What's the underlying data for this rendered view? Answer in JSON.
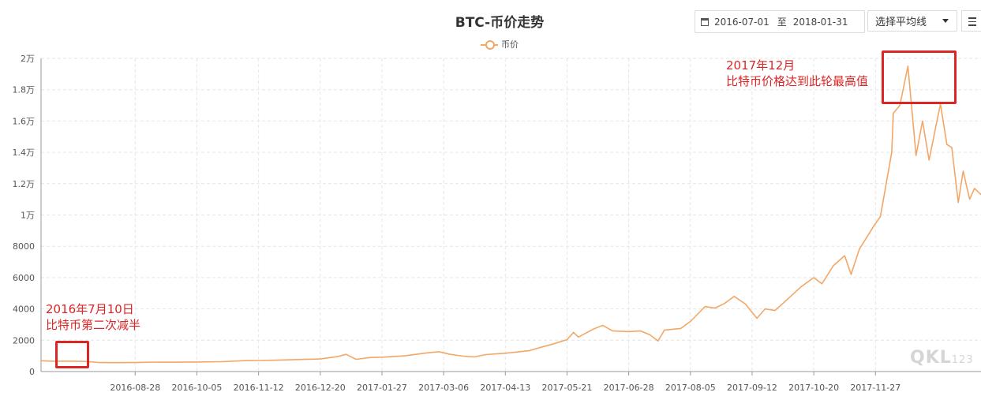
{
  "chart_data": {
    "type": "line",
    "title": "BTC-币价走势",
    "legend": {
      "position": "top-center",
      "entries": [
        "币价"
      ]
    },
    "series": [
      {
        "name": "币价",
        "color": "#f2a766",
        "points": [
          [
            "2016-07-01",
            690
          ],
          [
            "2016-07-09",
            660
          ],
          [
            "2016-07-16",
            665
          ],
          [
            "2016-07-24",
            660
          ],
          [
            "2016-07-31",
            630
          ],
          [
            "2016-08-05",
            580
          ],
          [
            "2016-08-14",
            570
          ],
          [
            "2016-08-28",
            575
          ],
          [
            "2016-09-10",
            605
          ],
          [
            "2016-09-25",
            600
          ],
          [
            "2016-10-05",
            612
          ],
          [
            "2016-10-20",
            630
          ],
          [
            "2016-11-05",
            700
          ],
          [
            "2016-11-12",
            705
          ],
          [
            "2016-11-25",
            735
          ],
          [
            "2016-12-08",
            770
          ],
          [
            "2016-12-20",
            800
          ],
          [
            "2016-12-31",
            960
          ],
          [
            "2017-01-05",
            1100
          ],
          [
            "2017-01-11",
            780
          ],
          [
            "2017-01-20",
            895
          ],
          [
            "2017-01-27",
            915
          ],
          [
            "2017-02-10",
            1000
          ],
          [
            "2017-02-23",
            1180
          ],
          [
            "2017-03-03",
            1270
          ],
          [
            "2017-03-10",
            1100
          ],
          [
            "2017-03-18",
            980
          ],
          [
            "2017-03-25",
            935
          ],
          [
            "2017-04-01",
            1085
          ],
          [
            "2017-04-13",
            1170
          ],
          [
            "2017-04-28",
            1340
          ],
          [
            "2017-05-05",
            1550
          ],
          [
            "2017-05-12",
            1750
          ],
          [
            "2017-05-21",
            2040
          ],
          [
            "2017-05-25",
            2500
          ],
          [
            "2017-05-28",
            2200
          ],
          [
            "2017-06-06",
            2700
          ],
          [
            "2017-06-12",
            2950
          ],
          [
            "2017-06-18",
            2600
          ],
          [
            "2017-06-28",
            2550
          ],
          [
            "2017-07-05",
            2600
          ],
          [
            "2017-07-11",
            2350
          ],
          [
            "2017-07-16",
            1950
          ],
          [
            "2017-07-20",
            2650
          ],
          [
            "2017-07-30",
            2750
          ],
          [
            "2017-08-05",
            3200
          ],
          [
            "2017-08-14",
            4150
          ],
          [
            "2017-08-20",
            4050
          ],
          [
            "2017-08-26",
            4350
          ],
          [
            "2017-09-01",
            4800
          ],
          [
            "2017-09-08",
            4300
          ],
          [
            "2017-09-15",
            3400
          ],
          [
            "2017-09-20",
            4000
          ],
          [
            "2017-09-26",
            3900
          ],
          [
            "2017-10-01",
            4350
          ],
          [
            "2017-10-12",
            5400
          ],
          [
            "2017-10-20",
            6000
          ],
          [
            "2017-10-25",
            5600
          ],
          [
            "2017-11-01",
            6750
          ],
          [
            "2017-11-08",
            7400
          ],
          [
            "2017-11-12",
            6200
          ],
          [
            "2017-11-17",
            7800
          ],
          [
            "2017-11-26",
            9300
          ],
          [
            "2017-11-30",
            9900
          ],
          [
            "2017-12-07",
            14000
          ],
          [
            "2017-12-08",
            16500
          ],
          [
            "2017-12-12",
            17000
          ],
          [
            "2017-12-17",
            19500
          ],
          [
            "2017-12-22",
            13800
          ],
          [
            "2017-12-26",
            16000
          ],
          [
            "2017-12-30",
            13500
          ],
          [
            "2018-01-06",
            17100
          ],
          [
            "2018-01-10",
            14500
          ],
          [
            "2018-01-13",
            14300
          ],
          [
            "2018-01-17",
            10800
          ],
          [
            "2018-01-20",
            12800
          ],
          [
            "2018-01-24",
            11000
          ],
          [
            "2018-01-27",
            11700
          ],
          [
            "2018-01-31",
            11300
          ]
        ]
      }
    ],
    "x_axis": {
      "range": [
        "2016-07-01",
        "2018-01-31"
      ],
      "tick_labels": [
        "2016-08-28",
        "2016-10-05",
        "2016-11-12",
        "2016-12-20",
        "2017-01-27",
        "2017-03-06",
        "2017-04-13",
        "2017-05-21",
        "2017-06-28",
        "2017-08-05",
        "2017-09-12",
        "2017-10-20",
        "2017-11-27"
      ]
    },
    "y_axis": {
      "min": 0,
      "max": 20000,
      "ticks": [
        0,
        2000,
        4000,
        6000,
        8000,
        10000,
        12000,
        14000,
        16000,
        18000,
        20000
      ],
      "tick_labels": [
        "0",
        "2000",
        "4000",
        "6000",
        "8000",
        "1万",
        "1.2万",
        "1.4万",
        "1.6万",
        "1.8万",
        "2万"
      ]
    },
    "grid": true,
    "annotations": [
      {
        "date": "2016-07-10",
        "line1": "2016年7月10日",
        "line2": "比特币第二次减半"
      },
      {
        "date": "2017-12",
        "line1": "2017年12月",
        "line2": "比特币价格达到此轮最高值"
      }
    ]
  },
  "toolbar": {
    "date_from": "2016-07-01",
    "date_sep": "至",
    "date_to": "2018-01-31",
    "ma_select_label": "选择平均线",
    "calendar_icon": "calendar-icon",
    "menu_icon": "hamburger-menu-icon"
  },
  "watermark": {
    "brand": "QKL",
    "suffix": "123"
  }
}
